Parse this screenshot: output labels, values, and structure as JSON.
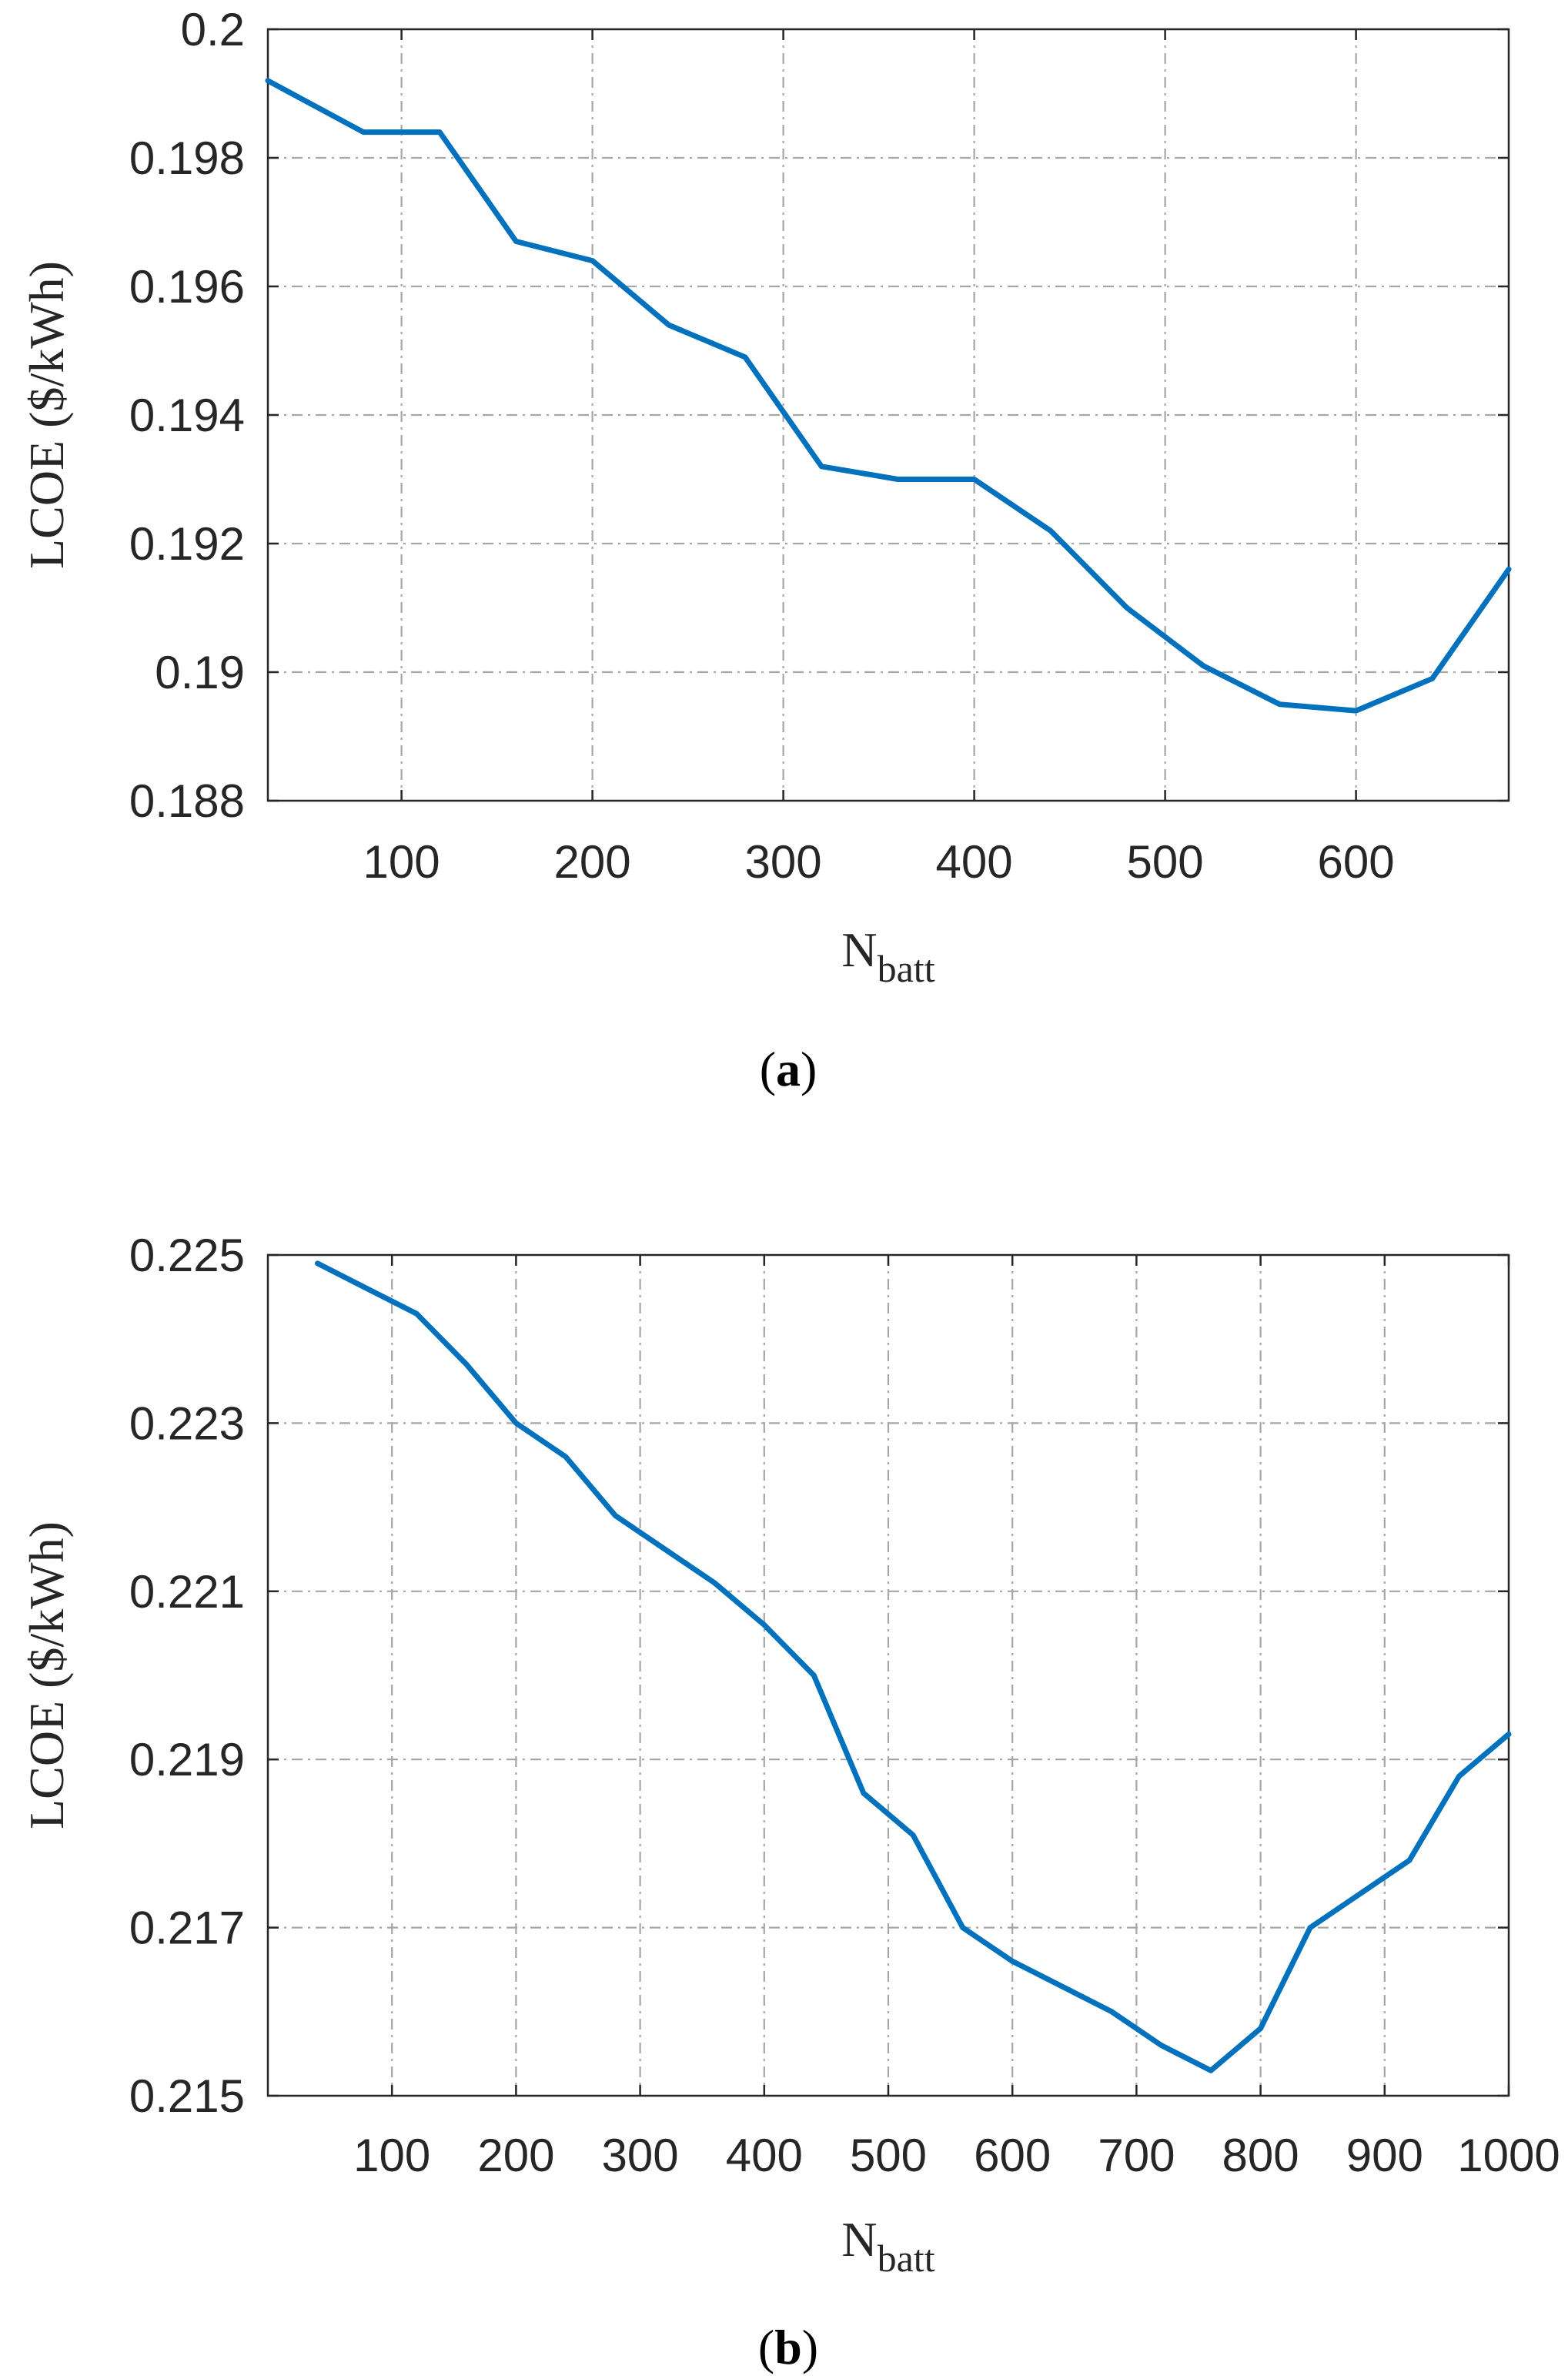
{
  "chart_data": [
    {
      "type": "line",
      "caption": "a",
      "xlabel": "N",
      "xlabel_sub": "batt",
      "ylabel": "LCOE ($/kWh)",
      "xlim": [
        30,
        680
      ],
      "ylim": [
        0.188,
        0.2
      ],
      "xticks": [
        100,
        200,
        300,
        400,
        500,
        600
      ],
      "xtick_labels": [
        "100",
        "200",
        "300",
        "400",
        "500",
        "600"
      ],
      "yticks": [
        0.188,
        0.19,
        0.192,
        0.194,
        0.196,
        0.198,
        0.2
      ],
      "ytick_labels": [
        "0.188",
        "0.19",
        "0.192",
        "0.194",
        "0.196",
        "0.198",
        "0.2"
      ],
      "grid": true,
      "color": "#0072bd",
      "series": [
        {
          "x": [
            30,
            80,
            120,
            160,
            200,
            240,
            280,
            320,
            360,
            400,
            440,
            480,
            520,
            560,
            600,
            640,
            680
          ],
          "values": [
            0.1992,
            0.1984,
            0.1984,
            0.1967,
            0.1964,
            0.1954,
            0.1949,
            0.1932,
            0.193,
            0.193,
            0.1922,
            0.191,
            0.1901,
            0.1895,
            0.1894,
            0.1899,
            0.1916
          ]
        }
      ]
    },
    {
      "type": "line",
      "caption": "b",
      "xlabel": "N",
      "xlabel_sub": "batt",
      "ylabel": "LCOE ($/kWh)",
      "xlim": [
        0,
        1000
      ],
      "ylim": [
        0.215,
        0.225
      ],
      "xticks": [
        100,
        200,
        300,
        400,
        500,
        600,
        700,
        800,
        900,
        1000
      ],
      "xtick_labels": [
        "100",
        "200",
        "300",
        "400",
        "500",
        "600",
        "700",
        "800",
        "900",
        "1000"
      ],
      "yticks": [
        0.215,
        0.217,
        0.219,
        0.221,
        0.223,
        0.225
      ],
      "ytick_labels": [
        "0.215",
        "0.217",
        "0.219",
        "0.221",
        "0.223",
        "0.225"
      ],
      "grid": true,
      "color": "#0072bd",
      "series": [
        {
          "x": [
            40,
            80,
            120,
            160,
            200,
            240,
            280,
            320,
            360,
            400,
            440,
            480,
            520,
            560,
            600,
            640,
            680,
            720,
            760,
            800,
            840,
            880,
            920,
            960,
            1000
          ],
          "values": [
            0.2249,
            0.2246,
            0.2243,
            0.2237,
            0.223,
            0.2226,
            0.2219,
            0.2215,
            0.2211,
            0.2206,
            0.22,
            0.2186,
            0.2181,
            0.217,
            0.2166,
            0.2163,
            0.216,
            0.2156,
            0.2153,
            0.2158,
            0.217,
            0.2174,
            0.2178,
            0.2188,
            0.2193
          ]
        }
      ]
    }
  ]
}
